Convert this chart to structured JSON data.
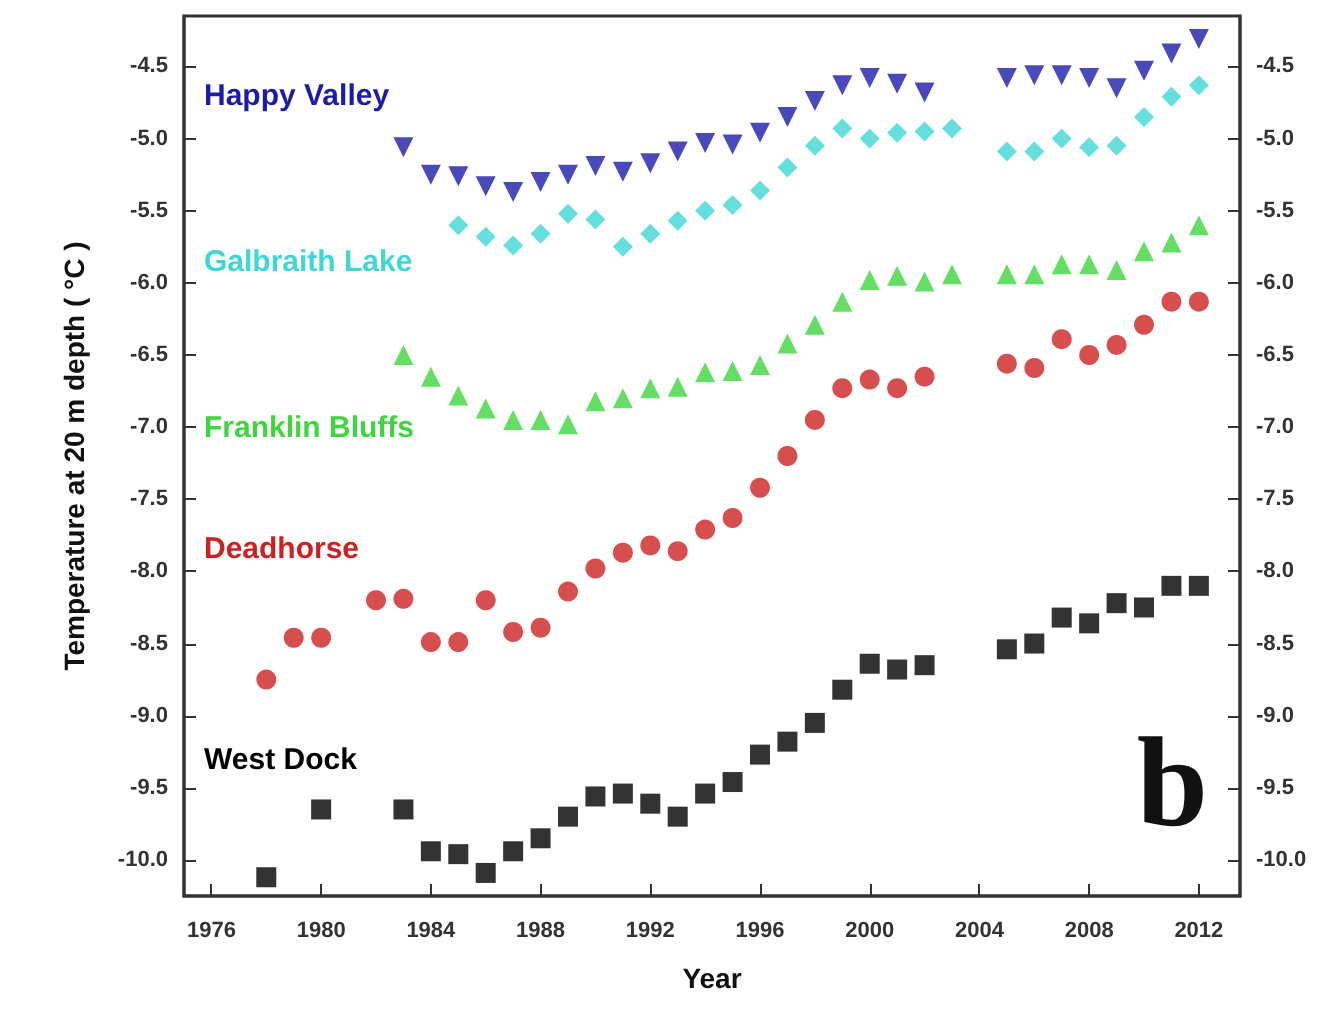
{
  "chart_data": {
    "type": "scatter",
    "xlabel": "Year",
    "ylabel": "Temperature at 20 m depth ( °C )",
    "annotations": [
      "b"
    ],
    "xlim": [
      1975,
      2013.5
    ],
    "xticks": [
      1976,
      1980,
      1984,
      1988,
      1992,
      1996,
      2000,
      2004,
      2008,
      2012
    ],
    "ylim": [
      -10.25,
      -4.15
    ],
    "yticks": [
      {
        "value": -10,
        "label": "-10.0"
      },
      -9.5,
      {
        "value": -9,
        "label": "-9.0"
      },
      -8.5,
      {
        "value": -8,
        "label": "-8.0"
      },
      -7.5,
      {
        "value": -7,
        "label": "-7.0"
      },
      -6.5,
      {
        "value": -6,
        "label": "-6.0"
      },
      -5.5,
      {
        "value": -5,
        "label": "-5.0"
      },
      -4.5
    ],
    "y2lim": [
      -10.25,
      -4.15
    ],
    "y2ticks": [
      {
        "value": -10,
        "label": "-10.0"
      },
      -9.5,
      {
        "value": -9,
        "label": "-9.0"
      },
      -8.5,
      {
        "value": -8,
        "label": "-8.0"
      },
      -7.5,
      {
        "value": -7,
        "label": "-7.0"
      },
      -6.5,
      {
        "value": -6,
        "label": "-6.0"
      },
      -5.5,
      {
        "value": -5,
        "label": "-5.0"
      },
      -4.5
    ],
    "grid": false,
    "legend": false,
    "series": [
      {
        "name": "Happy Valley",
        "color": "#1c1ca8",
        "marker": "triangle-down",
        "x": [
          1983,
          1984,
          1985,
          1986,
          1987,
          1988,
          1989,
          1990,
          1991,
          1992,
          1993,
          1994,
          1995,
          1996,
          1997,
          1998,
          1999,
          2000,
          2001,
          2002,
          2005,
          2006,
          2007,
          2008,
          2009,
          2010,
          2011,
          2012
        ],
        "values": [
          -5.06,
          -5.25,
          -5.26,
          -5.33,
          -5.37,
          -5.3,
          -5.25,
          -5.19,
          -5.23,
          -5.17,
          -5.09,
          -5.03,
          -5.04,
          -4.96,
          -4.85,
          -4.74,
          -4.63,
          -4.58,
          -4.62,
          -4.68,
          -4.58,
          -4.56,
          -4.56,
          -4.58,
          -4.65,
          -4.53,
          -4.41,
          -4.31
        ]
      },
      {
        "name": "Galbraith Lake",
        "color": "#3fd6d6",
        "marker": "diamond",
        "x": [
          1985,
          1986,
          1987,
          1988,
          1989,
          1990,
          1991,
          1992,
          1993,
          1994,
          1995,
          1996,
          1997,
          1998,
          1999,
          2000,
          2001,
          2002,
          2003,
          2005,
          2006,
          2007,
          2008,
          2009,
          2010,
          2011,
          2012
        ],
        "values": [
          -5.6,
          -5.68,
          -5.74,
          -5.66,
          -5.52,
          -5.56,
          -5.75,
          -5.66,
          -5.57,
          -5.5,
          -5.46,
          -5.36,
          -5.2,
          -5.05,
          -4.93,
          -5.0,
          -4.96,
          -4.95,
          -4.93,
          -5.09,
          -5.09,
          -5.0,
          -5.06,
          -5.05,
          -4.85,
          -4.71,
          -4.63
        ]
      },
      {
        "name": "Franklin Bluffs",
        "color": "#3ed63e",
        "marker": "triangle",
        "x": [
          1983,
          1984,
          1985,
          1986,
          1987,
          1988,
          1989,
          1990,
          1991,
          1992,
          1993,
          1994,
          1995,
          1996,
          1997,
          1998,
          1999,
          2000,
          2001,
          2002,
          2003,
          2005,
          2006,
          2007,
          2008,
          2009,
          2010,
          2011,
          2012
        ],
        "values": [
          -6.5,
          -6.65,
          -6.78,
          -6.87,
          -6.95,
          -6.95,
          -6.98,
          -6.82,
          -6.8,
          -6.73,
          -6.72,
          -6.62,
          -6.61,
          -6.57,
          -6.42,
          -6.29,
          -6.13,
          -5.98,
          -5.95,
          -5.99,
          -5.94,
          -5.94,
          -5.94,
          -5.87,
          -5.87,
          -5.91,
          -5.78,
          -5.72,
          -5.6
        ]
      },
      {
        "name": "Deadhorse",
        "color": "#cc2222",
        "marker": "circle",
        "x": [
          1978,
          1979,
          1980,
          1982,
          1983,
          1984,
          1985,
          1986,
          1987,
          1988,
          1989,
          1990,
          1991,
          1992,
          1993,
          1994,
          1995,
          1996,
          1997,
          1998,
          1999,
          2000,
          2001,
          2002,
          2005,
          2006,
          2007,
          2008,
          2009,
          2010,
          2011,
          2012
        ],
        "values": [
          -8.75,
          -8.46,
          -8.46,
          -8.2,
          -8.19,
          -8.49,
          -8.49,
          -8.2,
          -8.42,
          -8.39,
          -8.14,
          -7.98,
          -7.87,
          -7.82,
          -7.86,
          -7.71,
          -7.63,
          -7.42,
          -7.2,
          -6.95,
          -6.73,
          -6.67,
          -6.73,
          -6.65,
          -6.56,
          -6.59,
          -6.39,
          -6.5,
          -6.43,
          -6.29,
          -6.13,
          -6.13
        ]
      },
      {
        "name": "West Dock",
        "color": "#000000",
        "marker": "square",
        "x": [
          1978,
          1980,
          1983,
          1984,
          1985,
          1986,
          1987,
          1988,
          1989,
          1990,
          1991,
          1992,
          1993,
          1994,
          1995,
          1996,
          1997,
          1998,
          1999,
          2000,
          2001,
          2002,
          2005,
          2006,
          2007,
          2008,
          2009,
          2010,
          2011,
          2012
        ],
        "values": [
          -10.12,
          -9.65,
          -9.65,
          -9.94,
          -9.96,
          -10.09,
          -9.94,
          -9.85,
          -9.7,
          -9.56,
          -9.54,
          -9.61,
          -9.7,
          -9.54,
          -9.46,
          -9.27,
          -9.18,
          -9.05,
          -8.82,
          -8.64,
          -8.68,
          -8.65,
          -8.54,
          -8.5,
          -8.32,
          -8.36,
          -8.22,
          -8.25,
          -8.1,
          -8.1
        ]
      }
    ]
  }
}
